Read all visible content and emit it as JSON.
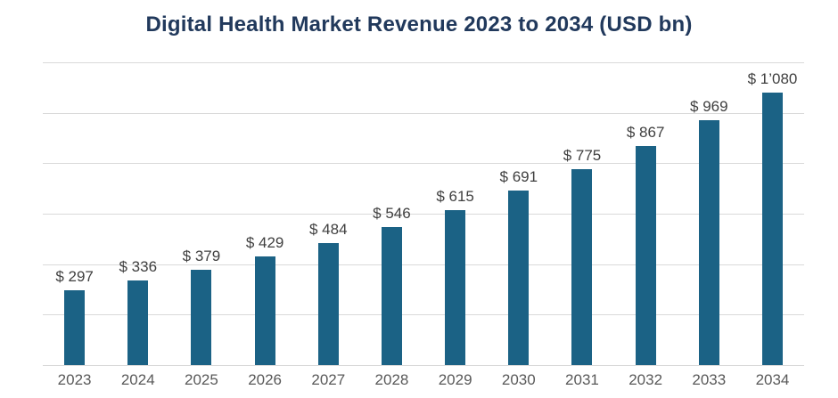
{
  "chart_data": {
    "type": "bar",
    "title": "Digital Health Market Revenue 2023 to 2034 (USD bn)",
    "categories": [
      "2023",
      "2024",
      "2025",
      "2026",
      "2027",
      "2028",
      "2029",
      "2030",
      "2031",
      "2032",
      "2033",
      "2034"
    ],
    "values": [
      297,
      336,
      379,
      429,
      484,
      546,
      615,
      691,
      775,
      867,
      969,
      1080
    ],
    "value_labels": [
      "$ 297",
      "$ 336",
      "$ 379",
      "$ 429",
      "$ 484",
      "$ 546",
      "$ 615",
      "$ 691",
      "$ 775",
      "$ 867",
      "$ 969",
      "$ 1’080"
    ],
    "xlabel": "",
    "ylabel": "",
    "ylim": [
      0,
      1200
    ],
    "gridline_step": 200,
    "grid": "horizontal",
    "legend_position": "none",
    "colors": {
      "bar": "#1b6285",
      "title": "#21395c",
      "value_label": "#3f3f3f",
      "axis_label": "#595959",
      "gridline": "#d9d9d9",
      "background": "#ffffff"
    }
  }
}
